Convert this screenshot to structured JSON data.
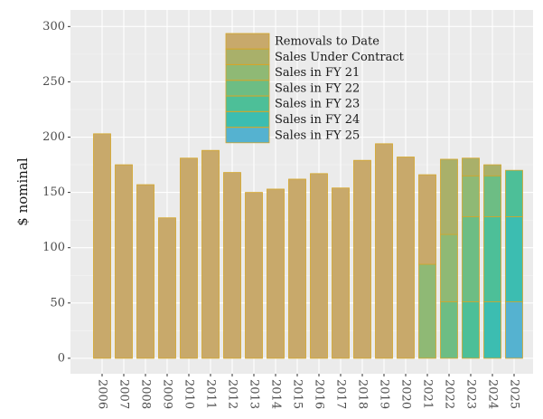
{
  "chart_data": {
    "type": "stacked_bar",
    "y_label": "$ nominal",
    "categories": [
      "2006",
      "2007",
      "2008",
      "2009",
      "2010",
      "2011",
      "2012",
      "2013",
      "2014",
      "2015",
      "2016",
      "2017",
      "2018",
      "2019",
      "2020",
      "2021",
      "2022",
      "2023",
      "2024",
      "2025"
    ],
    "series": [
      {
        "name": "Removals to Date",
        "color": "#c8a96b",
        "values": [
          203,
          175,
          157,
          127,
          181,
          188,
          168,
          150,
          153,
          162,
          167,
          154,
          179,
          194,
          182,
          81,
          null,
          null,
          null,
          null
        ]
      },
      {
        "name": "Sales Under Contract",
        "color": "#a9b06a",
        "values": [
          null,
          null,
          null,
          null,
          null,
          null,
          null,
          null,
          null,
          null,
          null,
          null,
          null,
          null,
          null,
          null,
          68,
          16,
          10,
          null
        ]
      },
      {
        "name": "Sales in FY 21",
        "color": "#8fb975",
        "values": [
          null,
          null,
          null,
          null,
          null,
          null,
          null,
          null,
          null,
          null,
          null,
          null,
          null,
          null,
          null,
          85,
          61,
          37,
          null,
          null
        ]
      },
      {
        "name": "Sales in FY 22",
        "color": "#6dbd84",
        "values": [
          null,
          null,
          null,
          null,
          null,
          null,
          null,
          null,
          null,
          null,
          null,
          null,
          null,
          null,
          null,
          null,
          51,
          77,
          37,
          null
        ]
      },
      {
        "name": "Sales in FY 23",
        "color": "#4dbf98",
        "values": [
          null,
          null,
          null,
          null,
          null,
          null,
          null,
          null,
          null,
          null,
          null,
          null,
          null,
          null,
          null,
          null,
          null,
          51,
          77,
          42
        ]
      },
      {
        "name": "Sales in FY 24",
        "color": "#3cbdb1",
        "values": [
          null,
          null,
          null,
          null,
          null,
          null,
          null,
          null,
          null,
          null,
          null,
          null,
          null,
          null,
          null,
          null,
          null,
          null,
          51,
          77
        ]
      },
      {
        "name": "Sales in FY 25",
        "color": "#55b2d0",
        "values": [
          null,
          null,
          null,
          null,
          null,
          null,
          null,
          null,
          null,
          null,
          null,
          null,
          null,
          null,
          null,
          null,
          null,
          null,
          null,
          51
        ]
      }
    ],
    "bar_outline": "#d4a62a",
    "ylim": [
      -14,
      315
    ],
    "yticks": [
      0,
      50,
      100,
      150,
      200,
      250,
      300
    ],
    "grid": true
  }
}
